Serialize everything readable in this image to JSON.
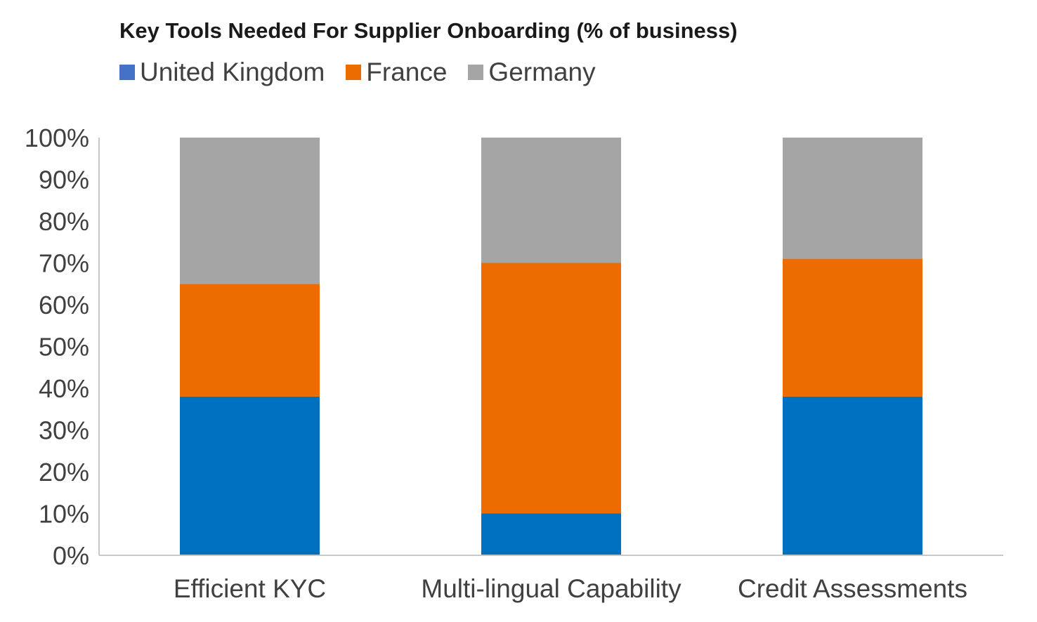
{
  "chart_data": {
    "type": "bar",
    "stacked": true,
    "title": "Key Tools Needed For Supplier Onboarding (% of business)",
    "categories": [
      "Efficient KYC",
      "Multi-lingual Capability",
      "Credit Assessments"
    ],
    "series": [
      {
        "name": "United Kingdom",
        "color": "#0070C0",
        "legend_color": "#4472C4",
        "values": [
          38,
          10,
          38
        ]
      },
      {
        "name": "France",
        "color": "#ED6C02",
        "legend_color": "#ED6C02",
        "values": [
          27,
          60,
          33
        ]
      },
      {
        "name": "Germany",
        "color": "#A5A5A5",
        "legend_color": "#A5A5A5",
        "values": [
          35,
          30,
          29
        ]
      }
    ],
    "ylim": [
      0,
      100
    ],
    "yticks": [
      "0%",
      "10%",
      "20%",
      "30%",
      "40%",
      "50%",
      "60%",
      "70%",
      "80%",
      "90%",
      "100%"
    ],
    "xlabel": "",
    "ylabel": "",
    "legend_position": "top-left",
    "grid": false
  }
}
